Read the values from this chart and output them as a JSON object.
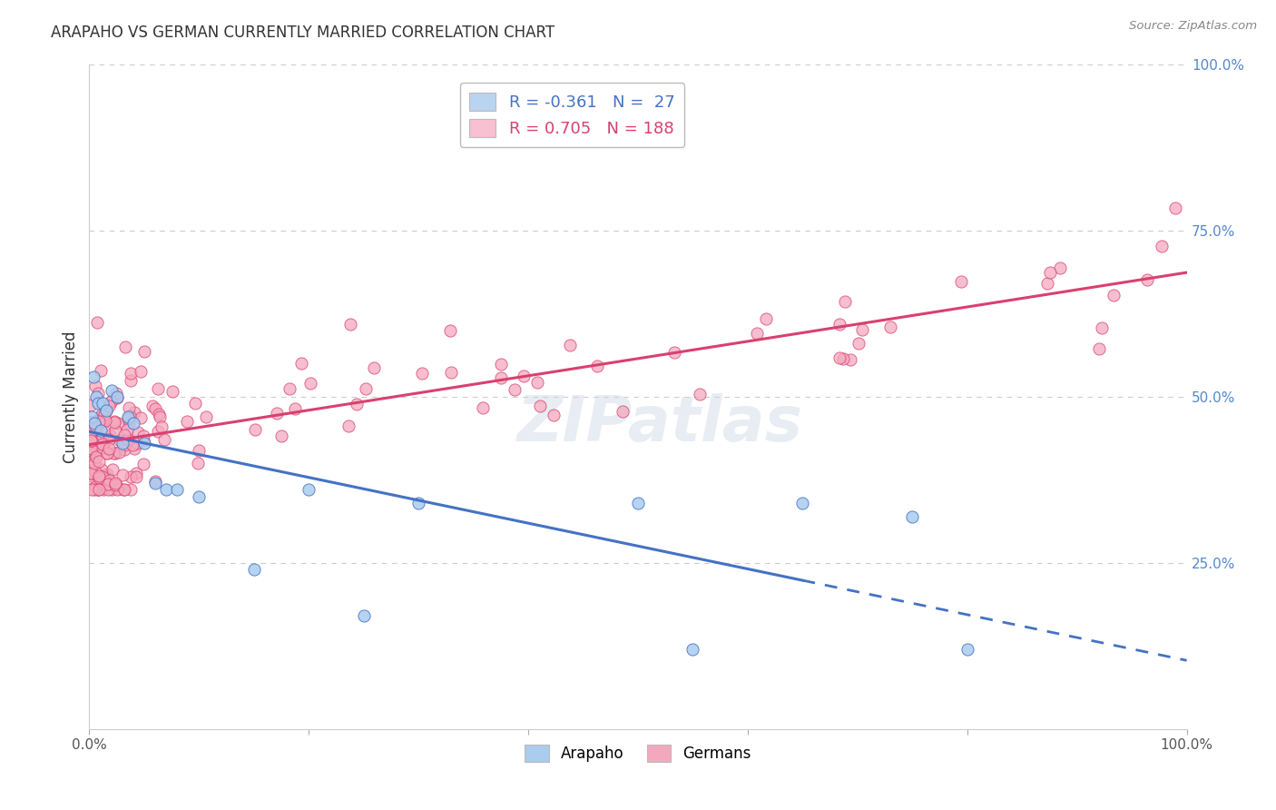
{
  "title": "ARAPAHO VS GERMAN CURRENTLY MARRIED CORRELATION CHART",
  "source": "Source: ZipAtlas.com",
  "ylabel": "Currently Married",
  "arapaho_R": -0.361,
  "arapaho_N": 27,
  "german_R": 0.705,
  "german_N": 188,
  "arapaho_color": "#aaccee",
  "german_color": "#f4a8be",
  "arapaho_line_color": "#4472c4",
  "german_line_color": "#d94070",
  "legend_box_arapaho": "#b8d4f0",
  "legend_box_german": "#f8c0d0",
  "watermark": "ZIPatlas",
  "grid_color": "#cccccc",
  "background": "#ffffff",
  "ytick_color": "#5588cc",
  "title_color": "#333333",
  "source_color": "#888888"
}
